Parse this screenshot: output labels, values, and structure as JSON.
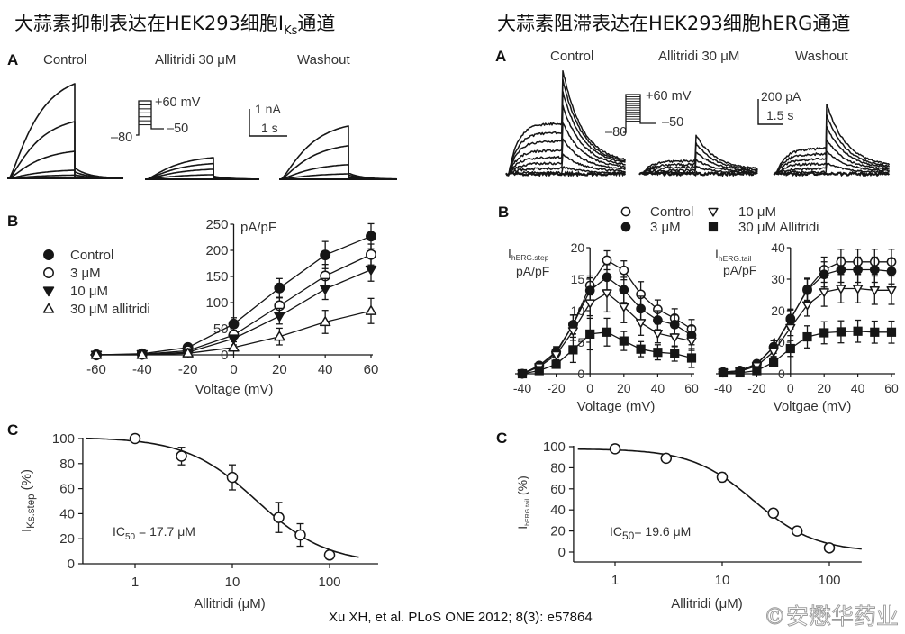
{
  "titles": {
    "left": {
      "main": "大蒜素抑制表达在HEK293细胞I",
      "sub": "Ks",
      "tail": "通道"
    },
    "right": "大蒜素阻滞表达在HEK293细胞hERG通道"
  },
  "citation": "Xu XH, et al. PLoS ONE 2012; 8(3): e57864",
  "watermark": "©安懋华药业",
  "chart_data": [
    {
      "id": "iks_traces",
      "panel": "A",
      "type": "line",
      "conditions": [
        {
          "label": "Control",
          "step_peaks_nA": [
            3.5,
            2.1,
            1.0,
            0.3,
            0.12
          ]
        },
        {
          "label": "Allitridi 30 μM",
          "step_peaks_nA": [
            0.8,
            0.58,
            0.37,
            0.17
          ]
        },
        {
          "label": "Washout",
          "step_peaks_nA": [
            1.97,
            1.24,
            0.54,
            0.2
          ]
        }
      ],
      "protocol": {
        "test_label": "+60 mV",
        "tail_label": "–50",
        "hold_label": "–80",
        "steps": 7
      },
      "scale_bar": {
        "current_label": "1 nA",
        "time_label": "1 s"
      }
    },
    {
      "id": "herg_traces",
      "panel": "A",
      "type": "line",
      "conditions": [
        {
          "label": "Control",
          "step_plateaus_pA": [
            430,
            350,
            280,
            200,
            140,
            90,
            45,
            10
          ],
          "tail_peaks_pA": [
            885,
            800,
            700,
            580,
            440,
            300,
            170,
            60
          ]
        },
        {
          "label": "Allitridi 30 μM",
          "step_plateaus_pA": [
            110,
            80,
            55,
            30,
            12
          ],
          "tail_peaks_pA": [
            330,
            260,
            190,
            120,
            60
          ]
        },
        {
          "label": "Washout",
          "step_plateaus_pA": [
            215,
            170,
            125,
            85,
            45,
            15
          ],
          "tail_peaks_pA": [
            600,
            500,
            400,
            290,
            190,
            90
          ]
        }
      ],
      "protocol": {
        "test_label": "+60 mV",
        "tail_label": "–50",
        "hold_label": "–80",
        "steps": 13
      },
      "scale_bar": {
        "current_label": "200 pA",
        "time_label": "1.5 s"
      }
    },
    {
      "id": "iks_iv",
      "panel": "B",
      "type": "line",
      "title": "",
      "xlabel": "Voltage (mV)",
      "ylabel": "pA/pF",
      "x": [
        -60,
        -40,
        -20,
        0,
        20,
        40,
        60
      ],
      "xlim": [
        -60,
        60
      ],
      "ylim": [
        0,
        250
      ],
      "xticks": [
        -60,
        -40,
        -20,
        0,
        20,
        40,
        60
      ],
      "yticks": [
        0,
        50,
        100,
        150,
        200,
        250
      ],
      "grid": false,
      "legend": "top-left",
      "series": [
        {
          "name": "Control",
          "marker": "filled-circle",
          "values": [
            0,
            2,
            14,
            59,
            128,
            191,
            227
          ],
          "errors": [
            0,
            0,
            3,
            12,
            18,
            26,
            24
          ]
        },
        {
          "name": "3 μM",
          "marker": "open-circle",
          "values": [
            0,
            1,
            8,
            38,
            94,
            151,
            192
          ],
          "errors": [
            0,
            0,
            2,
            8,
            15,
            22,
            20
          ]
        },
        {
          "name": "10 μM",
          "marker": "filled-triangle-down",
          "values": [
            0,
            1,
            5,
            31,
            74,
            126,
            163
          ],
          "errors": [
            0,
            0,
            2,
            6,
            15,
            20,
            22
          ]
        },
        {
          "name": "30 μM allitridi",
          "marker": "open-triangle-up",
          "values": [
            0,
            0,
            3,
            14,
            35,
            63,
            84
          ],
          "errors": [
            0,
            0,
            1,
            5,
            16,
            22,
            24
          ]
        }
      ]
    },
    {
      "id": "herg_step_iv",
      "panel": "B",
      "type": "line",
      "xlabel": "Voltage (mV)",
      "ylabel": {
        "main": "I",
        "sub": "hERG.step",
        "unit": "pA/pF"
      },
      "x": [
        -40,
        -30,
        -20,
        -10,
        0,
        10,
        20,
        30,
        40,
        50,
        60
      ],
      "xlim": [
        -40,
        60
      ],
      "ylim": [
        0,
        20
      ],
      "xticks": [
        -40,
        -20,
        0,
        20,
        40,
        60
      ],
      "yticks": [
        0,
        5,
        10,
        15,
        20
      ],
      "grid": false,
      "legend": "top",
      "series": [
        {
          "name": "Control",
          "marker": "open-circle",
          "values": [
            0,
            1.3,
            3.5,
            7.8,
            14,
            18,
            16.4,
            12.6,
            10.2,
            8.8,
            7.1
          ],
          "errors": [
            0,
            0.3,
            0.8,
            1.5,
            1.5,
            1.5,
            1.5,
            2,
            1.5,
            1.5,
            1.5
          ]
        },
        {
          "name": "3 μM",
          "marker": "filled-circle",
          "values": [
            0,
            1.3,
            3.3,
            7.8,
            13.2,
            15.3,
            13.3,
            10.3,
            8.5,
            7.8,
            6.1
          ],
          "errors": [
            0,
            0.3,
            0.8,
            1.5,
            2,
            2,
            2,
            2,
            1.5,
            1.5,
            1.5
          ]
        },
        {
          "name": "10 μM",
          "marker": "open-triangle-down",
          "values": [
            0,
            1.1,
            3,
            6.8,
            11.2,
            12.8,
            10.6,
            8.1,
            6.4,
            5.8,
            5.2
          ],
          "errors": [
            0,
            0.3,
            0.8,
            1.5,
            2,
            3,
            2.5,
            2,
            1.5,
            1.5,
            1.5
          ]
        },
        {
          "name": "30 μM Allitridi",
          "marker": "filled-square",
          "values": [
            0,
            0.5,
            1.5,
            3.8,
            6.3,
            6.6,
            5.2,
            3.9,
            3.4,
            3.2,
            2.5
          ],
          "errors": [
            0,
            0.2,
            0.5,
            2,
            2.5,
            2.2,
            1.5,
            1.2,
            1.2,
            1.2,
            1.5
          ]
        }
      ]
    },
    {
      "id": "herg_tail_iv",
      "panel": "B",
      "type": "line",
      "xlabel": "Voltgae (mV)",
      "ylabel": {
        "main": "I",
        "sub": "hERG.tail",
        "unit": "pA/pF"
      },
      "x": [
        -40,
        -30,
        -20,
        -10,
        0,
        10,
        20,
        30,
        40,
        50,
        60
      ],
      "xlim": [
        -40,
        60
      ],
      "ylim": [
        0,
        40
      ],
      "xticks": [
        -40,
        -20,
        0,
        20,
        40,
        60
      ],
      "yticks": [
        0,
        10,
        20,
        30,
        40
      ],
      "grid": false,
      "legend": "shared-top",
      "series": [
        {
          "name": "Control",
          "marker": "open-circle",
          "values": [
            0.5,
            1,
            3.2,
            8.5,
            17.2,
            26.8,
            33,
            35.5,
            35.5,
            35.5,
            35.5
          ],
          "errors": [
            0.3,
            0.5,
            0.8,
            2,
            3,
            3.5,
            4,
            4,
            4,
            4,
            4
          ]
        },
        {
          "name": "3 μM",
          "marker": "filled-circle",
          "values": [
            0.5,
            1,
            3,
            8.5,
            17.5,
            26.5,
            31.5,
            33,
            33,
            33,
            32.5
          ],
          "errors": [
            0.3,
            0.5,
            0.8,
            2,
            3,
            3.5,
            4,
            4,
            4,
            4,
            4
          ]
        },
        {
          "name": "10 μM",
          "marker": "open-triangle-down",
          "values": [
            0.4,
            0.8,
            2.5,
            7,
            14.6,
            21.8,
            25.9,
            27,
            27,
            26.5,
            26.5
          ],
          "errors": [
            0.3,
            0.5,
            0.8,
            1.5,
            2.5,
            3.5,
            4.5,
            4.5,
            4.5,
            4.5,
            4.5
          ]
        },
        {
          "name": "30 μM Allitridi",
          "marker": "filled-square",
          "values": [
            0.3,
            0.3,
            1,
            3.7,
            8,
            11.7,
            13,
            13.3,
            13.5,
            13.2,
            13.2
          ],
          "errors": [
            0.2,
            0.3,
            0.5,
            1.5,
            2.5,
            3.5,
            3.5,
            3.5,
            3.5,
            3.5,
            3.5
          ]
        }
      ]
    },
    {
      "id": "iks_dose",
      "panel": "C",
      "type": "scatter",
      "xscale": "log",
      "xlabel": "Allitridi (μM)",
      "ylabel": {
        "main": "I",
        "sub": "Ks.step",
        "unit": " (%)"
      },
      "x": [
        1,
        3,
        10,
        30,
        50,
        100
      ],
      "values": [
        100,
        86,
        69,
        37,
        23,
        7
      ],
      "errors": [
        2,
        7,
        10,
        12,
        9,
        1
      ],
      "xlim": [
        0.29,
        316
      ],
      "ylim": [
        0,
        100
      ],
      "xticks": [
        1,
        10,
        100
      ],
      "yticks": [
        0,
        20,
        40,
        60,
        80,
        100
      ],
      "annotation": {
        "main": "IC",
        "sub": "50",
        "rest": " = 17.7 μM"
      },
      "fit": {
        "type": "hill",
        "ic50": 17.7,
        "hill": 1.2,
        "top": 101,
        "x_range": [
          0.31,
          200
        ]
      }
    },
    {
      "id": "herg_dose",
      "panel": "C",
      "type": "scatter",
      "xscale": "log",
      "xlabel": "Allitridi (μM)",
      "ylabel": {
        "main": "I",
        "sub": "hERG.tail",
        "unit": " (%)"
      },
      "x": [
        1,
        3,
        10,
        30,
        50,
        100
      ],
      "values": [
        98,
        89,
        71,
        37,
        20,
        4
      ],
      "errors": [
        1,
        2,
        4,
        3,
        1.5,
        1
      ],
      "xlim": [
        0.41,
        200
      ],
      "ylim": [
        0,
        100
      ],
      "xticks": [
        1,
        10,
        100
      ],
      "yticks": [
        0,
        20,
        40,
        60,
        80,
        100
      ],
      "annotation": {
        "main": "IC",
        "sub": "50",
        "rest": "= 19.6 μM"
      },
      "fit": {
        "type": "hill",
        "ic50": 19.6,
        "hill": 1.5,
        "top": 98,
        "x_range": [
          0.45,
          200
        ]
      }
    }
  ]
}
